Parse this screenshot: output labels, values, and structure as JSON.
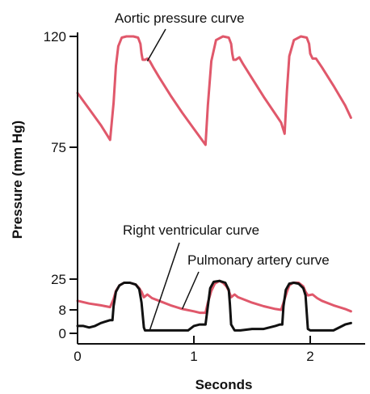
{
  "chart_data": {
    "type": "line",
    "title": "",
    "xlabel": "Seconds",
    "ylabel": "Pressure (mm Hg)",
    "xlim": [
      0,
      2.4
    ],
    "ylim": [
      0,
      125
    ],
    "x_ticks": [
      {
        "value": 0,
        "label": "0"
      },
      {
        "value": 1,
        "label": "1"
      },
      {
        "value": 2,
        "label": "2"
      }
    ],
    "y_ticks": [
      {
        "value": 0,
        "label": "0"
      },
      {
        "value": 8,
        "label": "8"
      },
      {
        "value": 25,
        "label": "25"
      },
      {
        "value": 75,
        "label": "75"
      },
      {
        "value": 120,
        "label": "120"
      }
    ],
    "grid": false,
    "legend": "none",
    "colors": {
      "aortic": "#e0586b",
      "pulmonary": "#e0586b",
      "ventricular": "#111111"
    },
    "series": [
      {
        "key": "aortic",
        "x": [
          0,
          0.1,
          0.2,
          0.28,
          0.31,
          0.33,
          0.35,
          0.38,
          0.42,
          0.48,
          0.52,
          0.54,
          0.55,
          0.56,
          0.57,
          0.58,
          0.6,
          0.62,
          0.65,
          0.7,
          0.8,
          0.9,
          1.0,
          1.1,
          1.12,
          1.15,
          1.19,
          1.25,
          1.3,
          1.32,
          1.33,
          1.34,
          1.36,
          1.39,
          1.42,
          1.5,
          1.6,
          1.7,
          1.75,
          1.78,
          1.8,
          1.82,
          1.86,
          1.92,
          1.97,
          1.99,
          2.0,
          2.02,
          2.05,
          2.1,
          2.2,
          2.3,
          2.35
        ],
        "y": [
          97,
          90.5,
          84,
          78,
          93,
          108,
          116,
          119.5,
          120,
          120,
          119.5,
          117,
          113,
          110.5,
          110.5,
          110.5,
          111,
          110,
          107.5,
          103.5,
          96,
          89,
          82.5,
          76,
          92,
          110,
          118.5,
          120,
          119.5,
          117,
          113,
          110.5,
          110.5,
          111.5,
          109,
          103,
          95.5,
          88.5,
          85,
          80.5,
          98,
          112,
          118.5,
          120,
          119.5,
          117,
          113,
          111,
          111,
          107.5,
          100,
          92,
          87
        ]
      },
      {
        "key": "pulmonary",
        "x": [
          0,
          0.1,
          0.2,
          0.28,
          0.31,
          0.33,
          0.36,
          0.4,
          0.45,
          0.5,
          0.53,
          0.55,
          0.57,
          0.6,
          0.64,
          0.7,
          0.8,
          0.9,
          1.0,
          1.05,
          1.1,
          1.12,
          1.15,
          1.18,
          1.22,
          1.25,
          1.28,
          1.3,
          1.32,
          1.35,
          1.38,
          1.42,
          1.5,
          1.6,
          1.7,
          1.75,
          1.77,
          1.8,
          1.82,
          1.85,
          1.9,
          1.94,
          1.96,
          1.98,
          2.02,
          2.06,
          2.1,
          2.2,
          2.3,
          2.35
        ],
        "y": [
          13,
          11.5,
          10.5,
          9.5,
          14,
          18.5,
          21.5,
          23,
          23,
          22,
          20,
          18,
          15,
          16.5,
          14.5,
          13,
          10.5,
          8.5,
          7.5,
          7,
          7,
          12,
          18.5,
          22.5,
          24,
          23,
          21,
          18.5,
          15,
          16.5,
          15,
          14,
          12,
          10,
          8.5,
          8,
          12,
          18,
          21.5,
          23,
          23,
          21,
          18,
          16,
          16.5,
          14.5,
          13,
          10.5,
          8.5,
          7.5
        ]
      },
      {
        "key": "ventricular",
        "x": [
          0,
          0.05,
          0.1,
          0.15,
          0.2,
          0.28,
          0.3,
          0.31,
          0.33,
          0.36,
          0.4,
          0.45,
          0.5,
          0.53,
          0.55,
          0.57,
          0.58,
          0.6,
          0.7,
          0.8,
          0.9,
          0.95,
          1.0,
          1.05,
          1.1,
          1.12,
          1.14,
          1.17,
          1.22,
          1.27,
          1.3,
          1.31,
          1.32,
          1.35,
          1.4,
          1.5,
          1.6,
          1.7,
          1.74,
          1.76,
          1.77,
          1.79,
          1.82,
          1.86,
          1.9,
          1.94,
          1.96,
          1.97,
          1.98,
          2.0,
          2.1,
          2.2,
          2.3,
          2.35
        ],
        "y": [
          2.5,
          2.5,
          2,
          2.5,
          3.5,
          4.5,
          4.5,
          10,
          18,
          21.5,
          23,
          23,
          22,
          19.5,
          12,
          2,
          1,
          1,
          1,
          1,
          1,
          1,
          2.5,
          3,
          3,
          10,
          20,
          23.5,
          24,
          23,
          19,
          11,
          3,
          1,
          1,
          1.5,
          1.5,
          2.5,
          3,
          3,
          10,
          19,
          22.5,
          23,
          22.5,
          20,
          16,
          7,
          1.5,
          1,
          1,
          1,
          3,
          3.5
        ]
      }
    ],
    "annotations": [
      {
        "label": "Aortic pressure curve",
        "x": 0.6,
        "y": 110
      },
      {
        "label": "Right ventricular curve",
        "x": 0.62,
        "y": 1
      },
      {
        "label": "Pulmonary artery curve",
        "x": 0.9,
        "y": 8.5
      }
    ]
  }
}
